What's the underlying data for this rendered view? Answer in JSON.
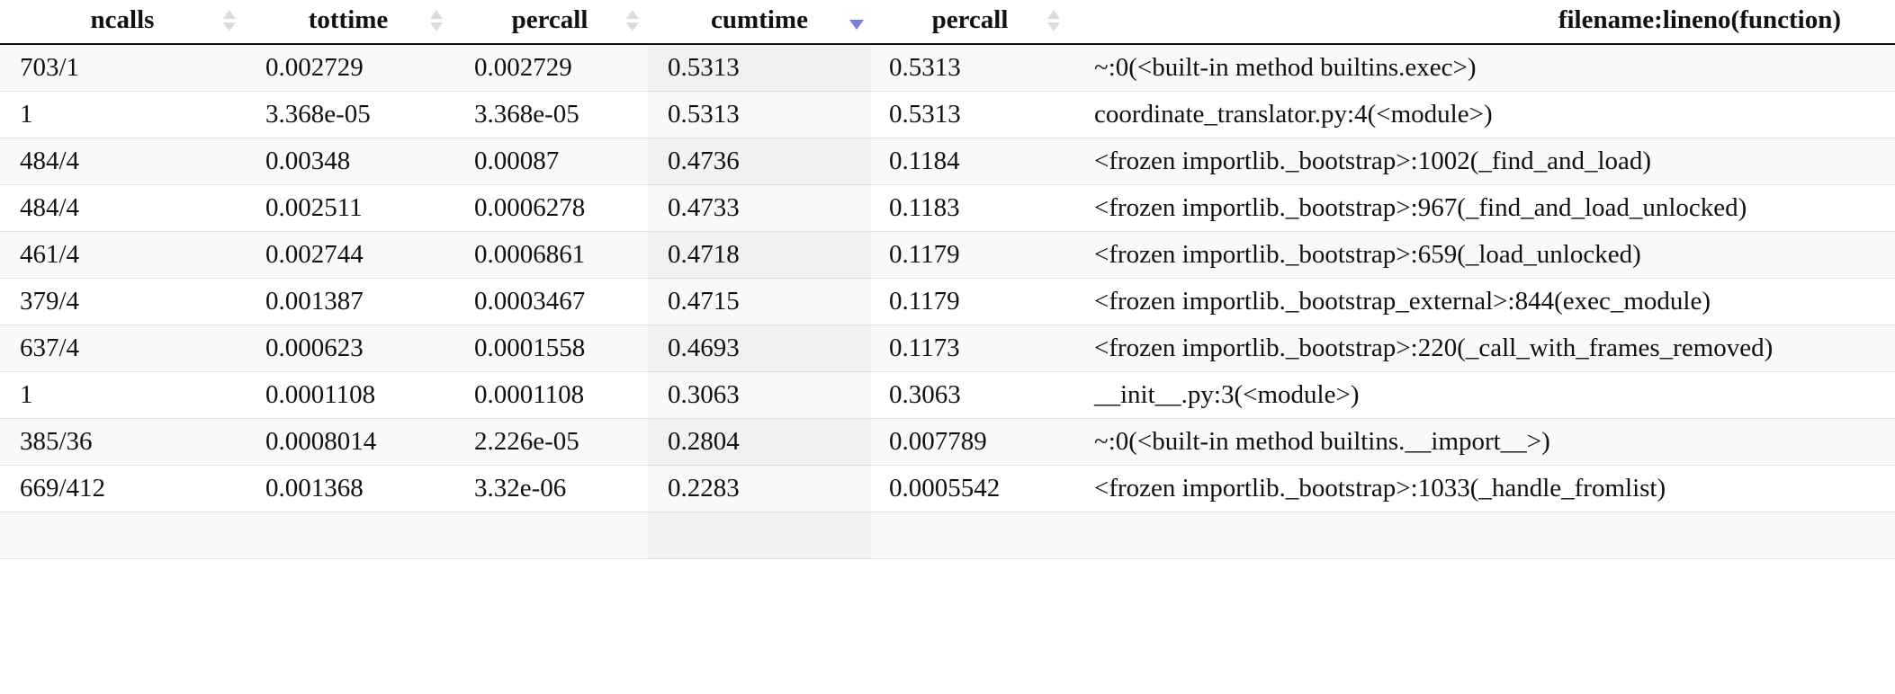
{
  "table": {
    "columns": [
      {
        "key": "ncalls",
        "label": "ncalls",
        "sort": "none"
      },
      {
        "key": "tottime",
        "label": "tottime",
        "sort": "none"
      },
      {
        "key": "percall1",
        "label": "percall",
        "sort": "none"
      },
      {
        "key": "cumtime",
        "label": "cumtime",
        "sort": "descending"
      },
      {
        "key": "percall2",
        "label": "percall",
        "sort": "none"
      },
      {
        "key": "filename",
        "label": "filename:lineno(function)",
        "sort": "none"
      }
    ],
    "rows": [
      [
        "703/1",
        "0.002729",
        "0.002729",
        "0.5313",
        "0.5313",
        "~:0(<built-in method builtins.exec>)"
      ],
      [
        "1",
        "3.368e-05",
        "3.368e-05",
        "0.5313",
        "0.5313",
        "coordinate_translator.py:4(<module>)"
      ],
      [
        "484/4",
        "0.00348",
        "0.00087",
        "0.4736",
        "0.1184",
        "<frozen importlib._bootstrap>:1002(_find_and_load)"
      ],
      [
        "484/4",
        "0.002511",
        "0.0006278",
        "0.4733",
        "0.1183",
        "<frozen importlib._bootstrap>:967(_find_and_load_unlocked)"
      ],
      [
        "461/4",
        "0.002744",
        "0.0006861",
        "0.4718",
        "0.1179",
        "<frozen importlib._bootstrap>:659(_load_unlocked)"
      ],
      [
        "379/4",
        "0.001387",
        "0.0003467",
        "0.4715",
        "0.1179",
        "<frozen importlib._bootstrap_external>:844(exec_module)"
      ],
      [
        "637/4",
        "0.000623",
        "0.0001558",
        "0.4693",
        "0.1173",
        "<frozen importlib._bootstrap>:220(_call_with_frames_removed)"
      ],
      [
        "1",
        "0.0001108",
        "0.0001108",
        "0.3063",
        "0.3063",
        "__init__.py:3(<module>)"
      ],
      [
        "385/36",
        "0.0008014",
        "2.226e-05",
        "0.2804",
        "0.007789",
        "~:0(<built-in method builtins.__import__>)"
      ],
      [
        "669/412",
        "0.001368",
        "3.32e-06",
        "0.2283",
        "0.0005542",
        "<frozen importlib._bootstrap>:1033(_handle_fromlist)"
      ],
      [
        "",
        "",
        "",
        "",
        "",
        ""
      ]
    ]
  },
  "colors": {
    "sort_active": "#7b7fe0",
    "sort_inactive": "#dcdcdc",
    "header_border": "#111111",
    "row_border": "#dddddd"
  }
}
